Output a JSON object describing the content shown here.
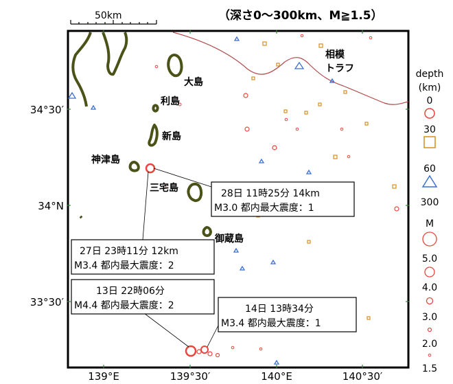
{
  "header": "（深さ0～300km、M≧1.5）",
  "scale_label": "50km",
  "axes": {
    "lat": [
      "34°30′",
      "34°N",
      "33°30′"
    ],
    "lon": [
      "139°E",
      "139°30′",
      "140°E",
      "140°30′"
    ]
  },
  "places": {
    "oshima": "大島",
    "toshima": "利島",
    "niijima": "新島",
    "kozushima": "神津島",
    "miyakejima": "三宅島",
    "mikurajima": "御蔵島",
    "trough_1": "相模",
    "trough_2": "トラフ"
  },
  "events": [
    {
      "line1": "28日 11時25分 14km",
      "line2": "M3.0 都内最大震度：1"
    },
    {
      "line1": "27日 23時11分 12km",
      "line2": "M3.4 都内最大震度：2"
    },
    {
      "line1": "13日 22時06分",
      "line2": "M4.4 都内最大震度：2"
    },
    {
      "line1": "14日 13時34分",
      "line2": "M3.4 都内最大震度：1"
    }
  ],
  "legend": {
    "depth_title_1": "depth",
    "depth_title_2": "(km)",
    "depth_ticks": [
      "0",
      "30",
      "60",
      "300"
    ],
    "mag_title": "M",
    "mag_ticks": [
      "5.0",
      "4.0",
      "3.0",
      "2.0",
      "1.5"
    ]
  },
  "colors": {
    "shallow": "#e8453c",
    "mid": "#d98b1f",
    "deep": "#3a6fd1",
    "coast": "#4a5218",
    "trough": "#b04a4a"
  }
}
